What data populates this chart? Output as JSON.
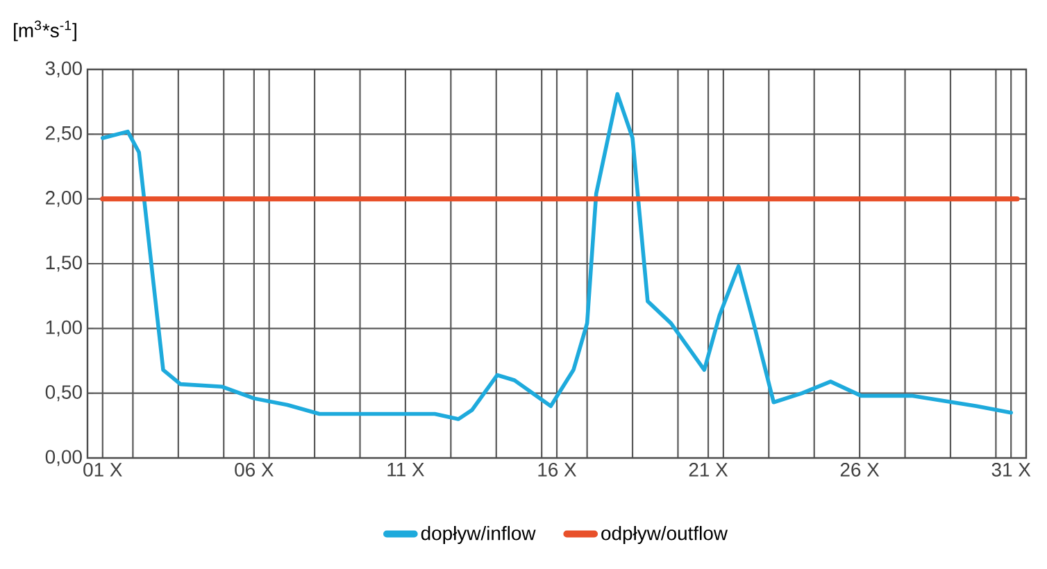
{
  "chart_data": {
    "type": "line",
    "ylabel": "[m$^{3}$*s$^{-1}$]",
    "xlim": [
      0.5,
      31.5
    ],
    "ylim": [
      0,
      3
    ],
    "xticks": [
      {
        "value": 1,
        "label": "01 X"
      },
      {
        "value": 2,
        "label": null
      },
      {
        "value": 3.5,
        "label": null
      },
      {
        "value": 5,
        "label": null
      },
      {
        "value": 6,
        "label": "06 X"
      },
      {
        "value": 6.5,
        "label": null
      },
      {
        "value": 8,
        "label": null
      },
      {
        "value": 9.5,
        "label": null
      },
      {
        "value": 11,
        "label": "11 X"
      },
      {
        "value": 12.5,
        "label": null
      },
      {
        "value": 14,
        "label": null
      },
      {
        "value": 15.5,
        "label": null
      },
      {
        "value": 16,
        "label": "16 X"
      },
      {
        "value": 17,
        "label": null
      },
      {
        "value": 18.5,
        "label": null
      },
      {
        "value": 20,
        "label": null
      },
      {
        "value": 21,
        "label": "21 X"
      },
      {
        "value": 21.5,
        "label": null
      },
      {
        "value": 23,
        "label": null
      },
      {
        "value": 24.5,
        "label": null
      },
      {
        "value": 26,
        "label": "26 X"
      },
      {
        "value": 27.5,
        "label": null
      },
      {
        "value": 29,
        "label": null
      },
      {
        "value": 30.5,
        "label": null
      },
      {
        "value": 31,
        "label": "31 X"
      }
    ],
    "yticks": [
      {
        "value": 0,
        "label": "0,00"
      },
      {
        "value": 0.5,
        "label": "0,50"
      },
      {
        "value": 1,
        "label": "1,00"
      },
      {
        "value": 1.5,
        "label": "1,50"
      },
      {
        "value": 2,
        "label": "2,00"
      },
      {
        "value": 2.5,
        "label": "2,50"
      },
      {
        "value": 3,
        "label": "3,00"
      }
    ],
    "grid": true,
    "legend": "bottom",
    "series": [
      {
        "name": "dopływ/inflow",
        "color": "#1eaadc",
        "x": [
          1,
          1.83,
          2.2,
          2.66,
          3.0,
          3.57,
          4.95,
          6.0,
          7.1,
          8.16,
          9.86,
          11.97,
          12.75,
          13.2,
          14.03,
          14.6,
          15.8,
          16.55,
          17.0,
          17.3,
          18.0,
          18.5,
          19.0,
          19.77,
          20.87,
          21.37,
          22.0,
          22.5,
          23.16,
          24.1,
          25.04,
          26.05,
          27.75,
          29.86,
          31.0
        ],
        "values": [
          2.47,
          2.52,
          2.36,
          1.39,
          0.68,
          0.57,
          0.55,
          0.46,
          0.41,
          0.34,
          0.34,
          0.34,
          0.3,
          0.37,
          0.64,
          0.6,
          0.4,
          0.68,
          1.04,
          2.04,
          2.81,
          2.47,
          1.21,
          1.04,
          0.68,
          1.1,
          1.48,
          1.04,
          0.43,
          0.5,
          0.59,
          0.48,
          0.48,
          0.4,
          0.35
        ]
      },
      {
        "name": "odpływ/outflow",
        "color": "#e8502a",
        "x": [
          1,
          31.2
        ],
        "values": [
          2,
          2
        ]
      }
    ]
  }
}
